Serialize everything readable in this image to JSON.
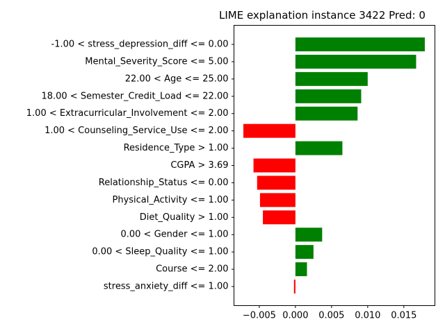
{
  "chart_data": {
    "type": "bar",
    "orientation": "horizontal",
    "title": "LIME explanation instance 3422 Pred: 0",
    "xlabel": "",
    "ylabel": "",
    "categories": [
      "-1.00 < stress_depression_diff <= 0.00",
      "Mental_Severity_Score <= 5.00",
      "22.00 < Age <= 25.00",
      "18.00 < Semester_Credit_Load <= 22.00",
      "1.00 < Extracurricular_Involvement <= 2.00",
      "1.00 < Counseling_Service_Use <= 2.00",
      "Residence_Type > 1.00",
      "CGPA > 3.69",
      "Relationship_Status <= 0.00",
      "Physical_Activity <= 1.00",
      "Diet_Quality > 1.00",
      "0.00 < Gender <= 1.00",
      "0.00 < Sleep_Quality <= 1.00",
      "Course <= 2.00",
      "stress_anxiety_diff <= 1.00"
    ],
    "values": [
      0.0179,
      0.0167,
      0.01,
      0.0091,
      0.0086,
      -0.0072,
      0.0065,
      -0.0058,
      -0.0053,
      -0.0049,
      -0.0045,
      0.0037,
      0.0025,
      0.0016,
      -0.0002
    ],
    "xlim": [
      -0.0085,
      0.0193
    ],
    "xticks": [
      -0.005,
      0.0,
      0.005,
      0.01,
      0.015
    ],
    "xtick_labels": [
      "−0.005",
      "0.000",
      "0.005",
      "0.010",
      "0.015"
    ],
    "grid": false,
    "colors": {
      "positive": "#008000",
      "negative": "#ff0000",
      "axis": "#000000"
    }
  }
}
